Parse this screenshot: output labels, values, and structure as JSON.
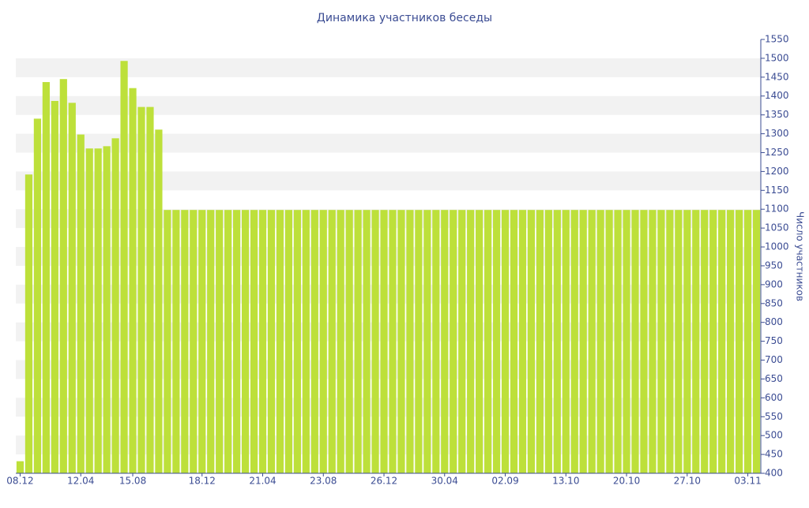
{
  "chart_data": {
    "type": "bar",
    "title": "Динамика участников беседы",
    "y_label": "Число участников",
    "categories": [
      "08.12",
      null,
      null,
      null,
      null,
      null,
      null,
      "12.04",
      null,
      null,
      null,
      null,
      null,
      "15.08",
      null,
      null,
      null,
      null,
      null,
      null,
      null,
      "18.12",
      null,
      null,
      null,
      null,
      null,
      null,
      "21.04",
      null,
      null,
      null,
      null,
      null,
      null,
      "23.08",
      null,
      null,
      null,
      null,
      null,
      null,
      "26.12",
      null,
      null,
      null,
      null,
      null,
      null,
      "30.04",
      null,
      null,
      null,
      null,
      null,
      null,
      "02.09",
      null,
      null,
      null,
      null,
      null,
      null,
      "13.10",
      null,
      null,
      null,
      null,
      null,
      null,
      "20.10",
      null,
      null,
      null,
      null,
      null,
      null,
      "27.10",
      null,
      null,
      null,
      null,
      null,
      null,
      "03.11",
      null
    ],
    "values": [
      432,
      1192,
      1340,
      1437,
      1387,
      1445,
      1382,
      1298,
      1261,
      1261,
      1267,
      1288,
      1493,
      1421,
      1371,
      1371,
      1311,
      1098,
      1098,
      1098,
      1098,
      1098,
      1098,
      1098,
      1098,
      1098,
      1098,
      1098,
      1098,
      1098,
      1098,
      1098,
      1098,
      1098,
      1098,
      1098,
      1098,
      1098,
      1098,
      1098,
      1098,
      1098,
      1098,
      1098,
      1098,
      1098,
      1098,
      1098,
      1098,
      1098,
      1098,
      1098,
      1098,
      1098,
      1098,
      1098,
      1098,
      1098,
      1098,
      1098,
      1098,
      1098,
      1098,
      1098,
      1098,
      1098,
      1098,
      1098,
      1098,
      1098,
      1098,
      1098,
      1098,
      1098,
      1098,
      1098,
      1098,
      1098,
      1098,
      1098,
      1098,
      1098,
      1098,
      1098,
      1098,
      1098
    ],
    "color": "#bde03a",
    "ylim": [
      400,
      1550
    ],
    "yticks": [
      400,
      450,
      500,
      550,
      600,
      650,
      700,
      750,
      800,
      850,
      900,
      950,
      1000,
      1050,
      1100,
      1150,
      1200,
      1250,
      1300,
      1350,
      1400,
      1450,
      1500,
      1550
    ],
    "y_axis_side": "right",
    "grid": "bands"
  }
}
